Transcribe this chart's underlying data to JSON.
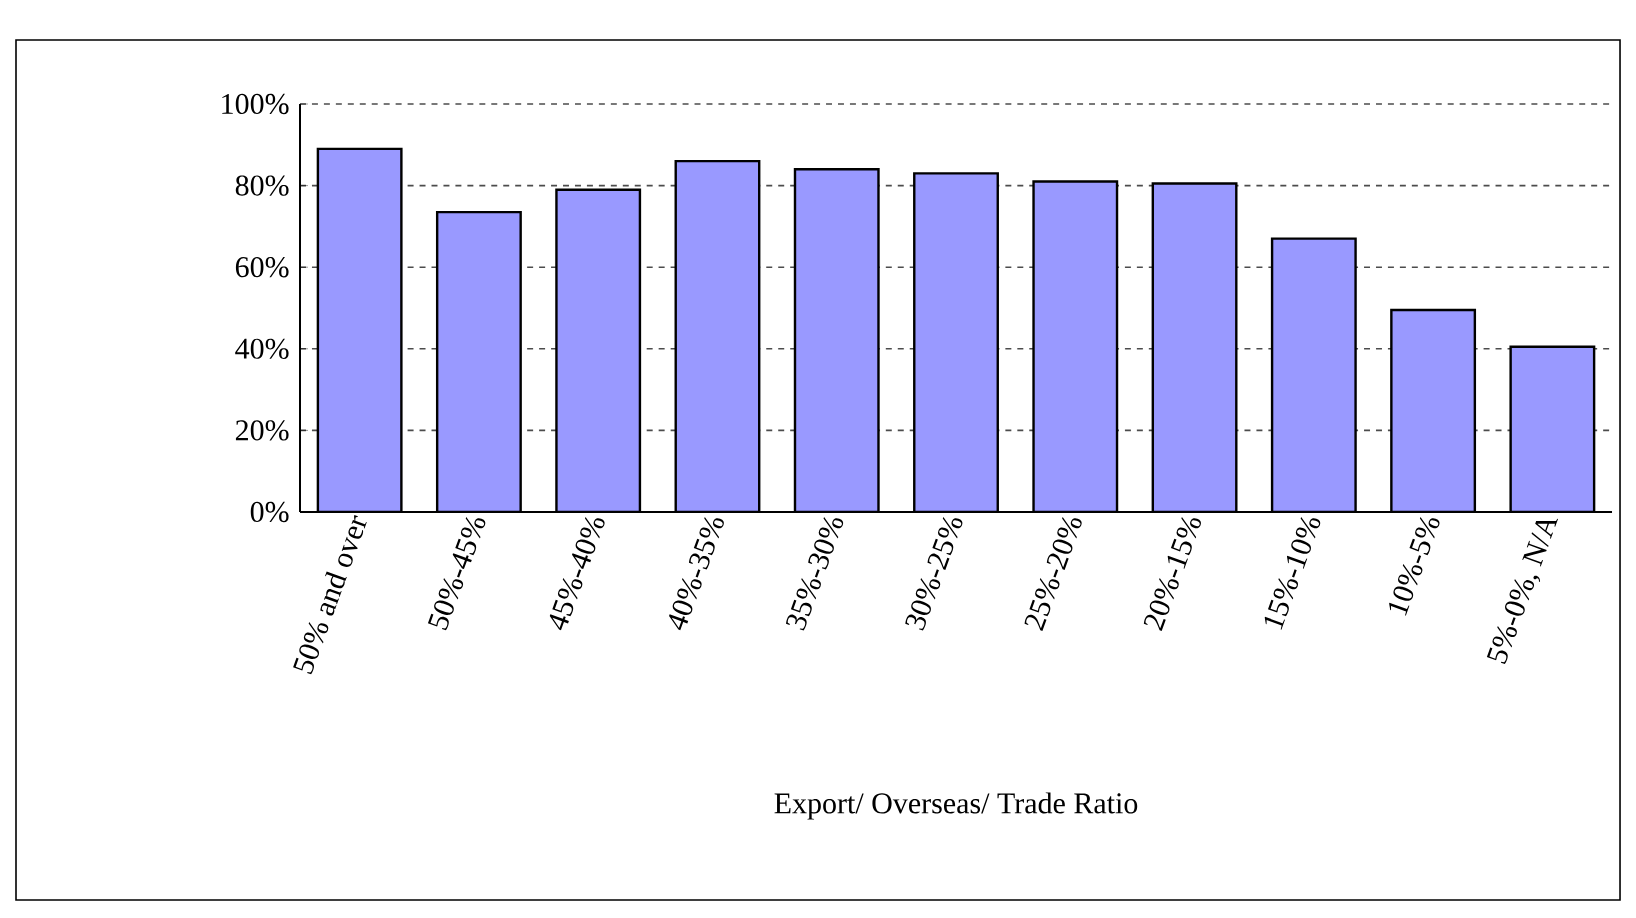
{
  "chart_data": {
    "type": "bar",
    "xlabel": "Export/ Overseas/ Trade Ratio",
    "categories": [
      "50% and over",
      "50%-45%",
      "45%-40%",
      "40%-35%",
      "35%-30%",
      "30%-25%",
      "25%-20%",
      "20%-15%",
      "15%-10%",
      "10%-5%",
      "5%-0%, N/A"
    ],
    "values": [
      89,
      73.5,
      79,
      86,
      84,
      83,
      81,
      80.5,
      67,
      49.5,
      40.5
    ],
    "color": "#9999ff",
    "ylim": [
      0,
      100
    ],
    "yticks": [
      {
        "value": 0,
        "label": "0%"
      },
      {
        "value": 20,
        "label": "20%"
      },
      {
        "value": 40,
        "label": "40%"
      },
      {
        "value": 60,
        "label": "60%"
      },
      {
        "value": 80,
        "label": "80%"
      },
      {
        "value": 100,
        "label": "100%"
      }
    ],
    "grid": "y"
  }
}
